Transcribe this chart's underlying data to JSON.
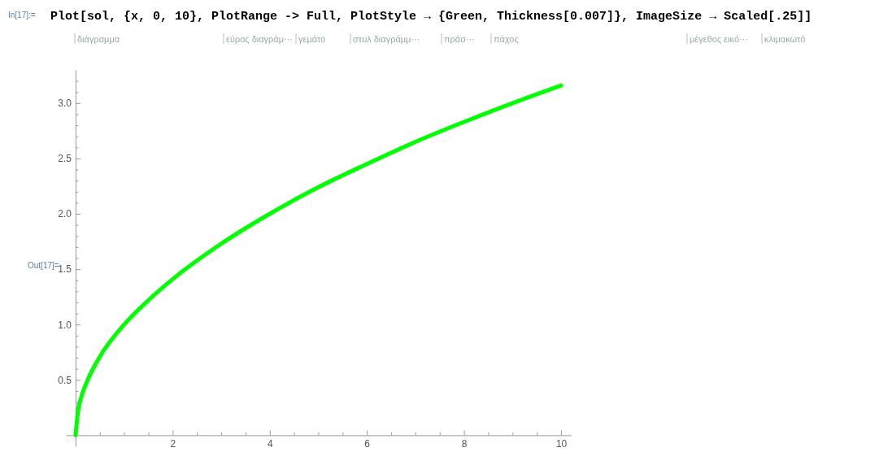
{
  "chart_data": {
    "type": "line",
    "annotations": [
      "In[17]:=",
      "Plot[sol, {x, 0, 10}, PlotRange -> Full, PlotStyle → {Green, Thickness[0.007]}, ImageSize → Scaled[.25]]",
      "διάγραμμα",
      "εύρος διαγράμ···",
      "γεμάτο",
      "στυλ διαγράμμ···",
      "πράσ···",
      "πάχος",
      "μέγεθος εικό···",
      "κλιμακωτό",
      "Out[17]="
    ],
    "xlim": [
      -0.2,
      10.2
    ],
    "ylim": [
      -0.1,
      3.3
    ],
    "xticks": [
      {
        "value": 0.5,
        "label": null
      },
      {
        "value": 1,
        "label": null
      },
      {
        "value": 1.5,
        "label": null
      },
      2,
      {
        "value": 2.5,
        "label": null
      },
      {
        "value": 3,
        "label": null
      },
      {
        "value": 3.5,
        "label": null
      },
      4,
      {
        "value": 4.5,
        "label": null
      },
      {
        "value": 5,
        "label": null
      },
      {
        "value": 5.5,
        "label": null
      },
      6,
      {
        "value": 6.5,
        "label": null
      },
      {
        "value": 7,
        "label": null
      },
      {
        "value": 7.5,
        "label": null
      },
      8,
      {
        "value": 8.5,
        "label": null
      },
      {
        "value": 9,
        "label": null
      },
      {
        "value": 9.5,
        "label": null
      },
      10
    ],
    "yticks": [
      {
        "value": 0.1,
        "label": null
      },
      {
        "value": 0.2,
        "label": null
      },
      {
        "value": 0.3,
        "label": null
      },
      {
        "value": 0.4,
        "label": null
      },
      {
        "value": 0.5,
        "label": "0.5"
      },
      {
        "value": 0.6,
        "label": null
      },
      {
        "value": 0.7,
        "label": null
      },
      {
        "value": 0.8,
        "label": null
      },
      {
        "value": 0.9,
        "label": null
      },
      {
        "value": 1,
        "label": "1.0"
      },
      {
        "value": 1.1,
        "label": null
      },
      {
        "value": 1.2,
        "label": null
      },
      {
        "value": 1.3,
        "label": null
      },
      {
        "value": 1.4,
        "label": null
      },
      {
        "value": 1.5,
        "label": "1.5"
      },
      {
        "value": 1.6,
        "label": null
      },
      {
        "value": 1.7,
        "label": null
      },
      {
        "value": 1.8,
        "label": null
      },
      {
        "value": 1.9,
        "label": null
      },
      {
        "value": 2,
        "label": "2.0"
      },
      {
        "value": 2.1,
        "label": null
      },
      {
        "value": 2.2,
        "label": null
      },
      {
        "value": 2.3,
        "label": null
      },
      {
        "value": 2.4,
        "label": null
      },
      {
        "value": 2.5,
        "label": "2.5"
      },
      {
        "value": 2.6,
        "label": null
      },
      {
        "value": 2.7,
        "label": null
      },
      {
        "value": 2.8,
        "label": null
      },
      {
        "value": 2.9,
        "label": null
      },
      {
        "value": 3,
        "label": "3.0"
      },
      {
        "value": 3.1,
        "label": null
      },
      {
        "value": 3.2,
        "label": null
      }
    ],
    "x": [
      0,
      0.05,
      0.1,
      0.25,
      0.5,
      1,
      1.5,
      2,
      3,
      4,
      5,
      6,
      7,
      8,
      9,
      10
    ],
    "series": [
      {
        "color": "#00ff00",
        "values": [
          0,
          0.22,
          0.32,
          0.5,
          0.71,
          1,
          1.22,
          1.41,
          1.73,
          2,
          2.24,
          2.45,
          2.65,
          2.83,
          3,
          3.16
        ]
      }
    ],
    "marker": "none",
    "line_style": "solid"
  }
}
